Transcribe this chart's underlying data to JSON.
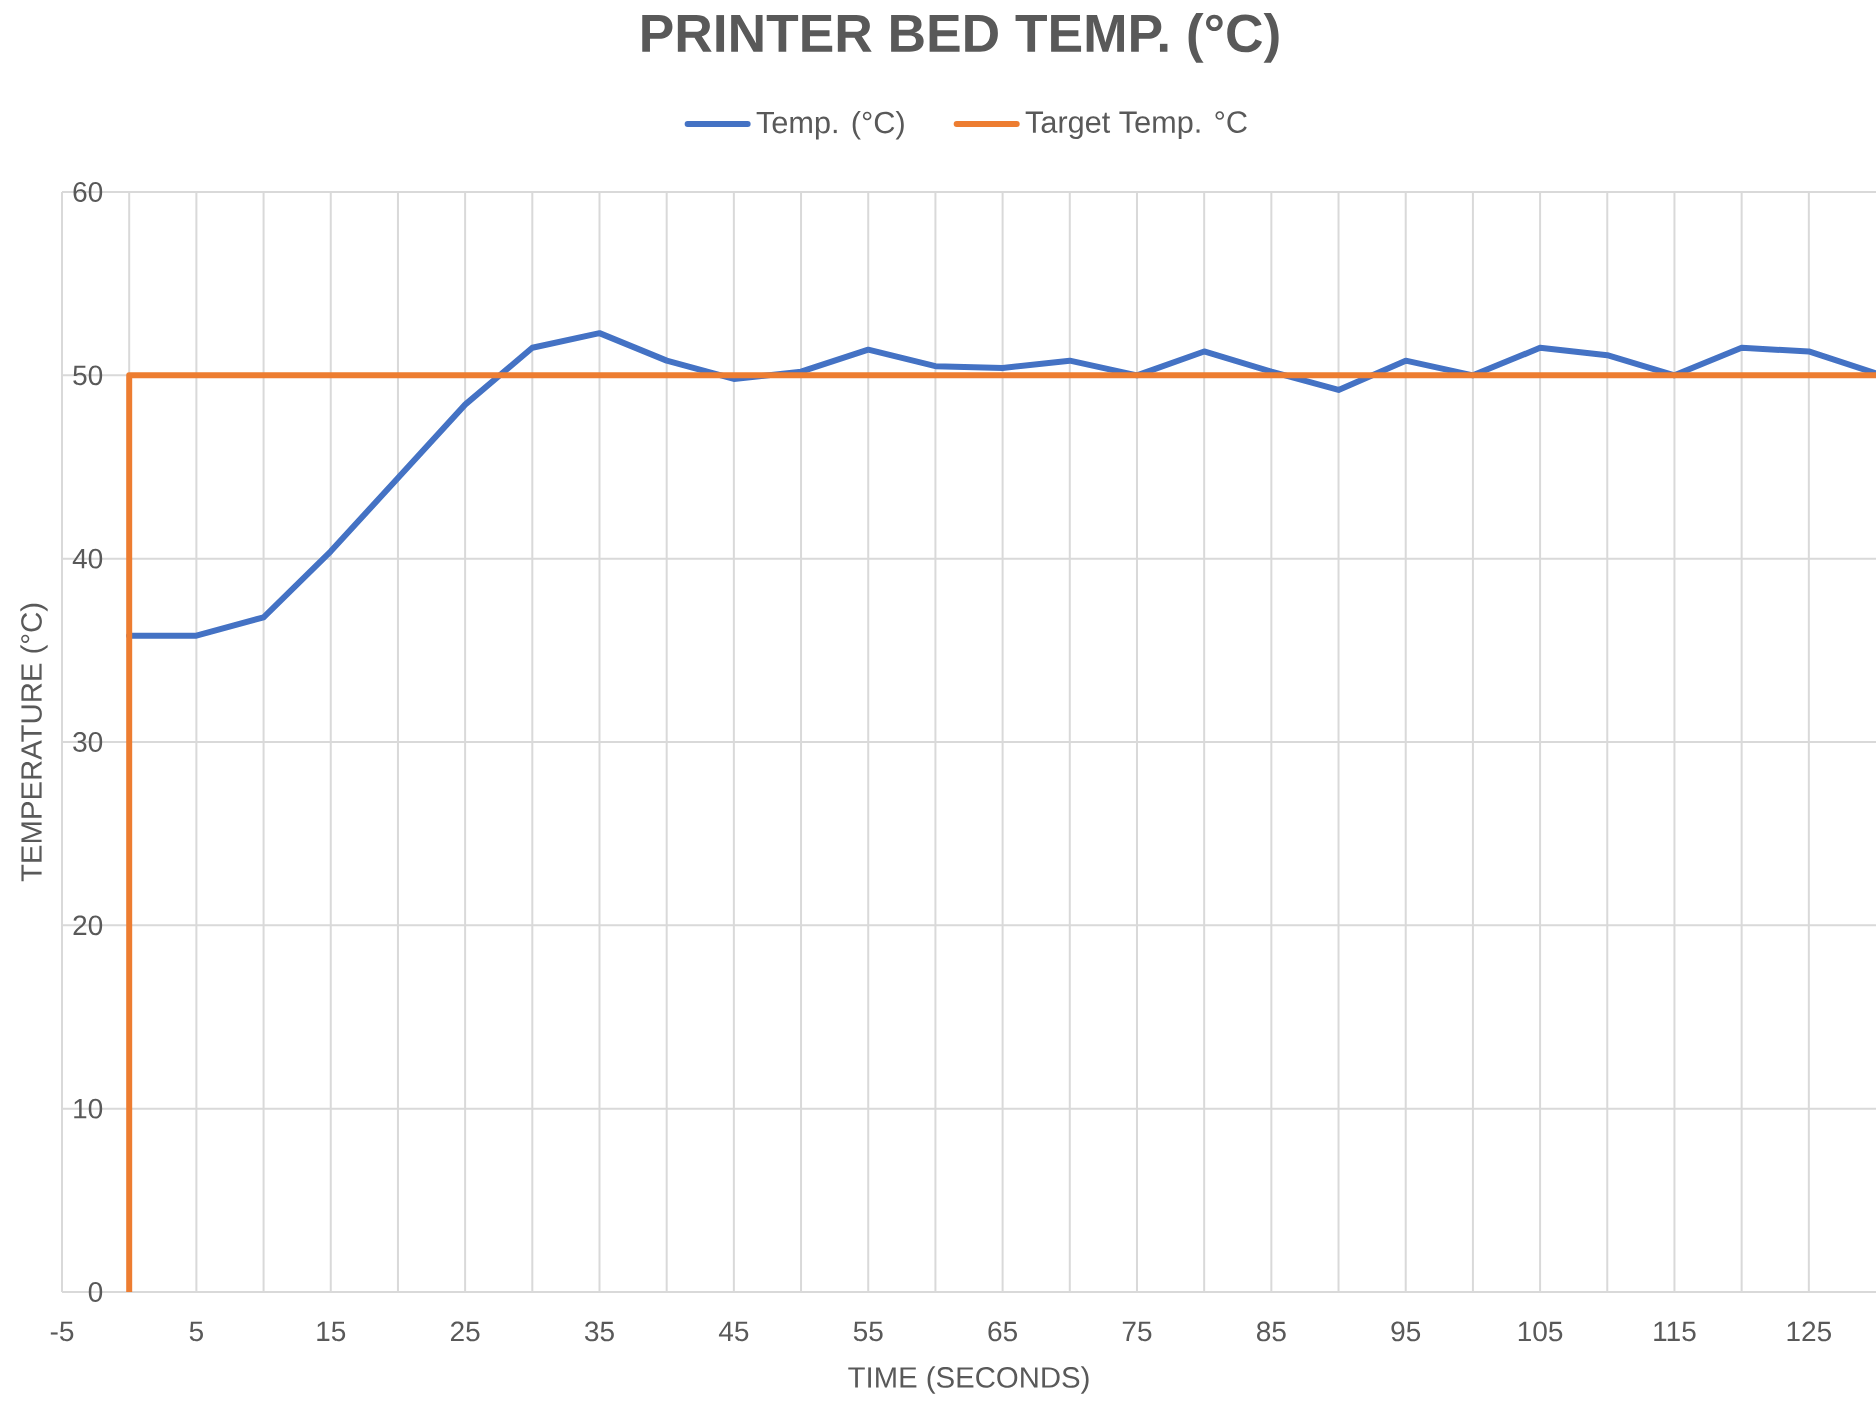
{
  "chart_data": {
    "type": "line",
    "title": "PRINTER BED TEMP. (°C)",
    "xlabel": "TIME (SECONDS)",
    "ylabel": "TEMPERATURE (°C)",
    "series": [
      {
        "name": "Temp. (°C)",
        "color": "#4472c4",
        "x": [
          0,
          5,
          10,
          15,
          20,
          25,
          30,
          35,
          40,
          45,
          50,
          55,
          60,
          65,
          70,
          75,
          80,
          85,
          90,
          95,
          100,
          105,
          110,
          115,
          120,
          125,
          130
        ],
        "values": [
          35.8,
          35.8,
          36.8,
          40.4,
          44.4,
          48.4,
          51.5,
          52.3,
          50.8,
          49.8,
          50.2,
          51.4,
          50.5,
          50.4,
          50.8,
          50.0,
          51.3,
          50.2,
          49.2,
          50.8,
          50.0,
          51.5,
          51.1,
          50.0,
          51.5,
          51.3,
          50.1
        ]
      },
      {
        "name": "Target Temp. °C",
        "color": "#ed7d31",
        "x": [
          0,
          0,
          130
        ],
        "values": [
          0,
          50,
          50
        ]
      }
    ],
    "xlim": [
      -5,
      130
    ],
    "ylim": [
      0,
      60
    ],
    "xticks": [
      -5,
      {
        "value": 0,
        "label": null
      },
      5,
      {
        "value": 10,
        "label": null
      },
      15,
      {
        "value": 20,
        "label": null
      },
      25,
      {
        "value": 30,
        "label": null
      },
      35,
      {
        "value": 40,
        "label": null
      },
      45,
      {
        "value": 50,
        "label": null
      },
      55,
      {
        "value": 60,
        "label": null
      },
      65,
      {
        "value": 70,
        "label": null
      },
      75,
      {
        "value": 80,
        "label": null
      },
      85,
      {
        "value": 90,
        "label": null
      },
      95,
      {
        "value": 100,
        "label": null
      },
      105,
      {
        "value": 110,
        "label": null
      },
      115,
      {
        "value": 120,
        "label": null
      },
      125
    ],
    "yticks": [
      0,
      10,
      20,
      30,
      40,
      50,
      60
    ],
    "grid": true,
    "legend": "top",
    "marker": "none",
    "line_style": "solid"
  }
}
